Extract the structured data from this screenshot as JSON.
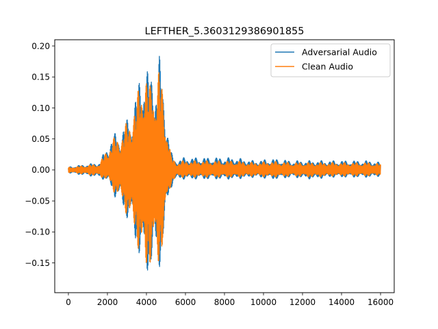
{
  "chart_data": {
    "type": "line",
    "title": "LEFTHER_5.3603129386901855",
    "xlabel": "",
    "ylabel": "",
    "xlim": [
      -700,
      16700
    ],
    "ylim": [
      -0.198,
      0.21
    ],
    "x_ticks": [
      {
        "value": 0,
        "label": "0"
      },
      {
        "value": 2000,
        "label": "2000"
      },
      {
        "value": 4000,
        "label": "4000"
      },
      {
        "value": 6000,
        "label": "6000"
      },
      {
        "value": 8000,
        "label": "8000"
      },
      {
        "value": 10000,
        "label": "10000"
      },
      {
        "value": 12000,
        "label": "12000"
      },
      {
        "value": 14000,
        "label": "14000"
      },
      {
        "value": 16000,
        "label": "16000"
      }
    ],
    "y_ticks": [
      {
        "value": 0.2,
        "label": "0.20"
      },
      {
        "value": 0.15,
        "label": "0.15"
      },
      {
        "value": 0.1,
        "label": "0.10"
      },
      {
        "value": 0.05,
        "label": "0.05"
      },
      {
        "value": 0.0,
        "label": "0.00"
      },
      {
        "value": -0.05,
        "label": "−0.05"
      },
      {
        "value": -0.1,
        "label": "−0.10"
      },
      {
        "value": -0.15,
        "label": "−0.15"
      }
    ],
    "grid": false,
    "legend_position": "top-right",
    "series": [
      {
        "name": "Adversarial Audio",
        "color": "#1f77b4",
        "x": [
          0,
          1600,
          2050,
          2400,
          2700,
          2950,
          3250,
          3500,
          3700,
          3850,
          3950,
          4050,
          4200,
          4300,
          4450,
          4550,
          4650,
          4750,
          4900,
          5050,
          5250,
          5500,
          5900,
          6500,
          7500,
          8500,
          9500,
          10500,
          11500,
          12500,
          13500,
          14500,
          15500,
          16000
        ],
        "max": [
          0.005,
          0.012,
          0.045,
          0.06,
          0.062,
          0.08,
          0.1,
          0.125,
          0.165,
          0.195,
          0.175,
          0.165,
          0.15,
          0.175,
          0.165,
          0.155,
          0.19,
          0.165,
          0.125,
          0.085,
          0.03,
          0.015,
          0.02,
          0.02,
          0.02,
          0.02,
          0.015,
          0.018,
          0.015,
          0.015,
          0.015,
          0.015,
          0.015,
          0.012
        ],
        "min": [
          -0.005,
          -0.012,
          -0.02,
          -0.045,
          -0.055,
          -0.075,
          -0.1,
          -0.125,
          -0.155,
          -0.175,
          -0.18,
          -0.168,
          -0.162,
          -0.165,
          -0.16,
          -0.17,
          -0.16,
          -0.15,
          -0.115,
          -0.065,
          -0.03,
          -0.015,
          -0.015,
          -0.015,
          -0.015,
          -0.015,
          -0.012,
          -0.015,
          -0.012,
          -0.015,
          -0.012,
          -0.012,
          -0.012,
          -0.01
        ]
      },
      {
        "name": "Clean Audio",
        "color": "#ff7f0e",
        "x": [
          0,
          1600,
          2050,
          2400,
          2700,
          2950,
          3250,
          3500,
          3700,
          3850,
          3950,
          4050,
          4200,
          4300,
          4450,
          4550,
          4650,
          4750,
          4900,
          5050,
          5250,
          5500,
          5900,
          6500,
          7500,
          8500,
          9500,
          10500,
          11500,
          12500,
          13500,
          14500,
          15500,
          16000
        ],
        "max": [
          0.004,
          0.01,
          0.04,
          0.055,
          0.058,
          0.075,
          0.095,
          0.115,
          0.155,
          0.175,
          0.165,
          0.15,
          0.14,
          0.17,
          0.155,
          0.145,
          0.175,
          0.155,
          0.115,
          0.078,
          0.025,
          0.012,
          0.015,
          0.015,
          0.015,
          0.015,
          0.012,
          0.014,
          0.012,
          0.012,
          0.012,
          0.012,
          0.012,
          0.01
        ],
        "min": [
          -0.004,
          -0.01,
          -0.018,
          -0.04,
          -0.05,
          -0.07,
          -0.095,
          -0.115,
          -0.15,
          -0.17,
          -0.178,
          -0.162,
          -0.155,
          -0.16,
          -0.155,
          -0.165,
          -0.155,
          -0.145,
          -0.11,
          -0.06,
          -0.025,
          -0.012,
          -0.012,
          -0.012,
          -0.012,
          -0.012,
          -0.01,
          -0.012,
          -0.01,
          -0.012,
          -0.01,
          -0.01,
          -0.01,
          -0.008
        ]
      }
    ]
  }
}
